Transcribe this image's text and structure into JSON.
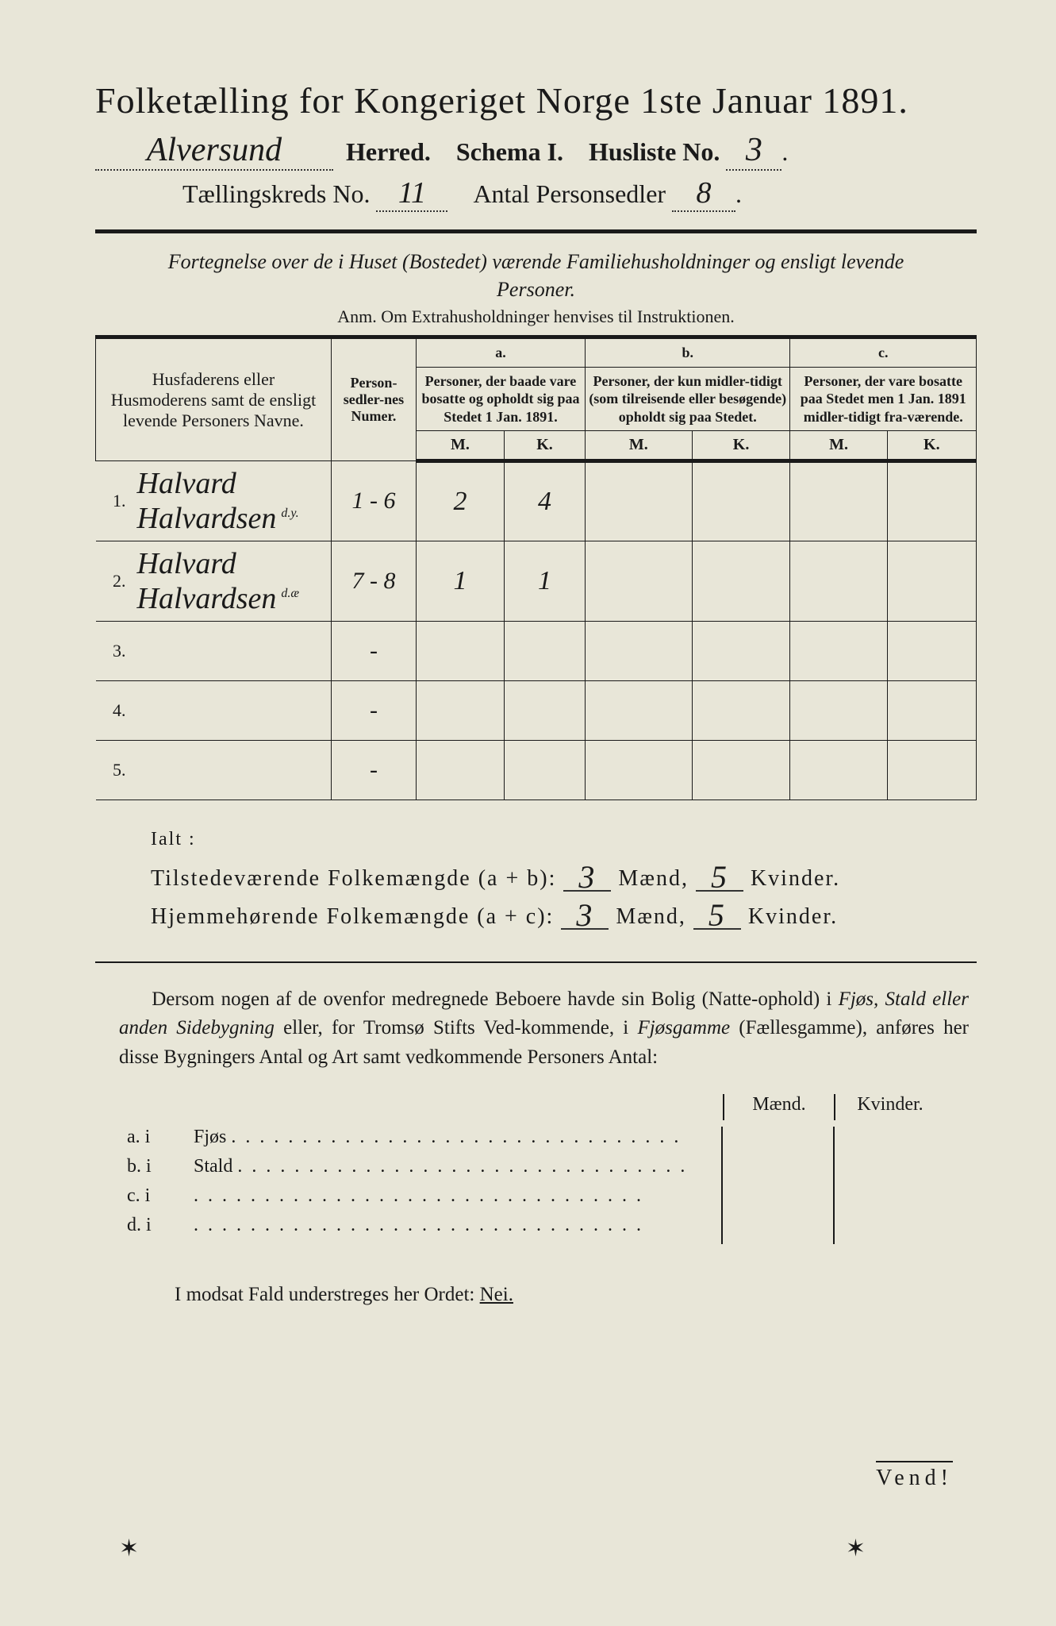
{
  "title": "Folketælling for Kongeriget Norge 1ste Januar 1891.",
  "header": {
    "herred_value": "Alversund",
    "herred_label": "Herred.",
    "schema_label": "Schema I.",
    "husliste_label": "Husliste No.",
    "husliste_value": "3",
    "kreds_label": "Tællingskreds No.",
    "kreds_value": "11",
    "antal_label": "Antal Personsedler",
    "antal_value": "8"
  },
  "instruction": "Fortegnelse over de i Huset (Bostedet) værende Familiehusholdninger og ensligt levende Personer.",
  "anm": "Anm. Om Extrahusholdninger henvises til Instruktionen.",
  "table": {
    "col_names": "Husfaderens eller Husmoderens samt de ensligt levende Personers Navne.",
    "col_person": "Person-sedler-nes Numer.",
    "group_a_tag": "a.",
    "group_a": "Personer, der baade vare bosatte og opholdt sig paa Stedet 1 Jan. 1891.",
    "group_b_tag": "b.",
    "group_b": "Personer, der kun midler-tidigt (som tilreisende eller besøgende) opholdt sig paa Stedet.",
    "group_c_tag": "c.",
    "group_c": "Personer, der vare bosatte paa Stedet men 1 Jan. 1891 midler-tidigt fra-værende.",
    "m": "M.",
    "k": "K.",
    "rows": [
      {
        "n": "1.",
        "name": "Halvard Halvardsen",
        "annot": "d.y.",
        "pnum": "1 - 6",
        "am": "2",
        "ak": "4",
        "bm": "",
        "bk": "",
        "cm": "",
        "ck": ""
      },
      {
        "n": "2.",
        "name": "Halvard Halvardsen",
        "annot": "d.æ",
        "pnum": "7 - 8",
        "am": "1",
        "ak": "1",
        "bm": "",
        "bk": "",
        "cm": "",
        "ck": ""
      },
      {
        "n": "3.",
        "name": "",
        "annot": "",
        "pnum": "-",
        "am": "",
        "ak": "",
        "bm": "",
        "bk": "",
        "cm": "",
        "ck": ""
      },
      {
        "n": "4.",
        "name": "",
        "annot": "",
        "pnum": "-",
        "am": "",
        "ak": "",
        "bm": "",
        "bk": "",
        "cm": "",
        "ck": ""
      },
      {
        "n": "5.",
        "name": "",
        "annot": "",
        "pnum": "-",
        "am": "",
        "ak": "",
        "bm": "",
        "bk": "",
        "cm": "",
        "ck": ""
      }
    ]
  },
  "totals": {
    "ialt": "Ialt :",
    "line1_label": "Tilstedeværende Folkemængde (a + b):",
    "line2_label": "Hjemmehørende Folkemængde (a + c):",
    "maend": "Mænd,",
    "kvinder": "Kvinder.",
    "v1m": "3",
    "v1k": "5",
    "v2m": "3",
    "v2k": "5"
  },
  "para": "Dersom nogen af de ovenfor medregnede Beboere havde sin Bolig (Natte-ophold) i Fjøs, Stald eller anden Sidebygning eller, for Tromsø Stifts Ved-kommende, i Fjøsgamme (Fællesgamme), anføres her disse Bygningers Antal og Art samt vedkommende Personers Antal:",
  "fjos": {
    "maend": "Mænd.",
    "kvinder": "Kvinder.",
    "rows": [
      {
        "lead": "a.  i",
        "label": "Fjøs"
      },
      {
        "lead": "b.  i",
        "label": "Stald"
      },
      {
        "lead": "c.  i",
        "label": ""
      },
      {
        "lead": "d.  i",
        "label": ""
      }
    ]
  },
  "modsat": "I modsat Fald understreges her Ordet:",
  "nei": "Nei.",
  "vend": "Vend!"
}
